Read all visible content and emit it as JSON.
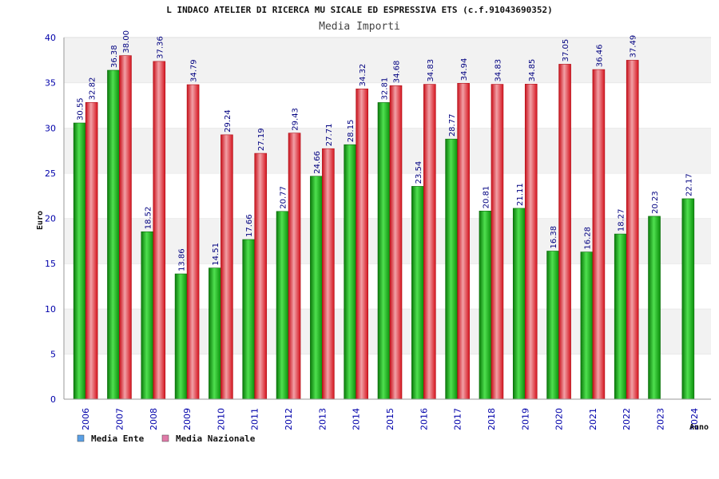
{
  "chart_data": {
    "type": "bar",
    "title": "L INDACO ATELIER DI RICERCA MU SICALE ED ESPRESSIVA ETS (c.f.91043690352)",
    "subtitle": "Media Importi",
    "xlabel": "Anno",
    "ylabel": "Euro",
    "ylim": [
      0,
      40
    ],
    "yticks": [
      "0",
      "5",
      "10",
      "15",
      "20",
      "25",
      "30",
      "35",
      "40"
    ],
    "categories": [
      "2006",
      "2007",
      "2008",
      "2009",
      "2010",
      "2011",
      "2012",
      "2013",
      "2014",
      "2015",
      "2016",
      "2017",
      "2018",
      "2019",
      "2020",
      "2021",
      "2022",
      "2023",
      "2024"
    ],
    "series": [
      {
        "name": "Media Ente",
        "color": "#11a611",
        "legend_color": "#5aa0e6",
        "values": [
          30.55,
          36.38,
          18.52,
          13.86,
          14.51,
          17.66,
          20.77,
          24.66,
          28.15,
          32.81,
          23.54,
          28.77,
          20.81,
          21.11,
          16.38,
          16.28,
          18.27,
          20.23,
          22.17
        ],
        "labels": [
          "30.55",
          "36.38",
          "18.52",
          "13.86",
          "14.51",
          "17.66",
          "20.77",
          "24.66",
          "28.15",
          "32.81",
          "23.54",
          "28.77",
          "20.81",
          "21.11",
          "16.38",
          "16.28",
          "18.27",
          "20.23",
          "22.17"
        ]
      },
      {
        "name": "Media Nazionale",
        "color": "#e8202a",
        "legend_color": "#e07aa8",
        "values": [
          32.82,
          38.0,
          37.36,
          34.79,
          29.24,
          27.19,
          29.43,
          27.71,
          34.32,
          34.68,
          34.83,
          34.94,
          34.83,
          34.85,
          37.05,
          36.46,
          37.49,
          null,
          null
        ],
        "labels": [
          "32.82",
          "38.00",
          "37.36",
          "34.79",
          "29.24",
          "27.19",
          "29.43",
          "27.71",
          "34.32",
          "34.68",
          "34.83",
          "34.94",
          "34.83",
          "34.85",
          "37.05",
          "36.46",
          "37.49",
          null,
          null
        ]
      }
    ],
    "grid": true,
    "legend_position": "bottom-left"
  }
}
